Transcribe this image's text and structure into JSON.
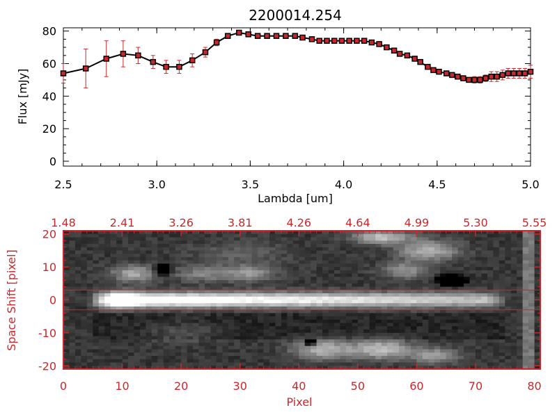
{
  "chart_data": [
    {
      "type": "line",
      "title": "2200014.254",
      "xlabel": "Lambda [um]",
      "ylabel": "Flux [mJy]",
      "xlim": [
        2.5,
        5.0
      ],
      "ylim": [
        -3,
        82
      ],
      "xticks": [
        "2.5",
        "3.0",
        "3.5",
        "4.0",
        "4.5",
        "5.0"
      ],
      "xtick_values": [
        2.5,
        3.0,
        3.5,
        4.0,
        4.5,
        5.0
      ],
      "yticks": [
        "0",
        "20",
        "40",
        "60",
        "80"
      ],
      "ytick_values": [
        0,
        20,
        40,
        60,
        80
      ],
      "grid": false,
      "line_color": "#000000",
      "marker_color": "#c8282d",
      "errorbar_color": "#c8282d",
      "x": [
        2.5,
        2.62,
        2.73,
        2.82,
        2.9,
        2.98,
        3.05,
        3.12,
        3.19,
        3.26,
        3.32,
        3.38,
        3.44,
        3.49,
        3.54,
        3.59,
        3.64,
        3.69,
        3.74,
        3.78,
        3.83,
        3.87,
        3.91,
        3.95,
        3.99,
        4.03,
        4.07,
        4.11,
        4.15,
        4.19,
        4.23,
        4.27,
        4.3,
        4.34,
        4.38,
        4.41,
        4.45,
        4.48,
        4.51,
        4.55,
        4.58,
        4.61,
        4.64,
        4.67,
        4.7,
        4.73,
        4.76,
        4.79,
        4.82,
        4.85,
        4.88,
        4.91,
        4.94,
        4.97,
        5.0
      ],
      "y": [
        54,
        57,
        63,
        66,
        65,
        61,
        58,
        58,
        62,
        67,
        73,
        77,
        79,
        78,
        77,
        77,
        77,
        77,
        77,
        76,
        75,
        74,
        74,
        74,
        74,
        74,
        74,
        74,
        73,
        72,
        70,
        68,
        66,
        65,
        63,
        61,
        58,
        56,
        55,
        54,
        53,
        52,
        51,
        50,
        50,
        50,
        51,
        52,
        52,
        53,
        54,
        54,
        54,
        54,
        55
      ],
      "yerr": [
        6,
        12,
        11,
        8,
        5,
        4,
        4,
        4,
        4,
        3,
        2,
        1,
        1,
        1,
        1,
        1,
        1,
        1,
        1,
        1,
        1,
        1,
        1,
        1,
        1,
        1,
        1,
        1,
        1,
        1,
        1,
        1,
        1,
        1,
        1,
        1,
        1,
        1,
        1,
        1,
        1,
        1,
        1,
        1,
        2,
        2,
        2,
        3,
        3,
        3,
        3,
        3,
        3,
        3,
        4
      ]
    },
    {
      "type": "heatmap",
      "xlabel": "Pixel",
      "ylabel": "Space Shift [pixel]",
      "xlim": [
        0,
        81
      ],
      "ylim": [
        -21,
        21
      ],
      "xticks": [
        "0",
        "10",
        "20",
        "30",
        "40",
        "50",
        "60",
        "70",
        "80"
      ],
      "xtick_values": [
        0,
        10,
        20,
        30,
        40,
        50,
        60,
        70,
        80
      ],
      "yticks": [
        "-20",
        "-10",
        "0",
        "10",
        "20"
      ],
      "ytick_values": [
        -20,
        -10,
        0,
        10,
        20
      ],
      "top_axis_ticks": [
        "1.48",
        "2.41",
        "3.26",
        "3.81",
        "4.26",
        "4.64",
        "4.99",
        "5.30",
        "5.55"
      ],
      "top_axis_values": [
        0,
        10,
        20,
        30,
        40,
        50,
        60,
        70,
        80
      ],
      "hlines": [
        3,
        -3
      ],
      "axis_color": "#c8282d",
      "colormap": "grayscale",
      "components": [
        {
          "kind": "trace",
          "center": 0,
          "width": 2.2,
          "x_start": 6,
          "x_end": 74,
          "peak": 1.0
        },
        {
          "kind": "blob",
          "x": 10,
          "y": 0,
          "sx": 3,
          "sy": 2.5,
          "amp": 0.35
        },
        {
          "kind": "blob",
          "x": 12,
          "y": 8,
          "sx": 4,
          "sy": 2.5,
          "amp": 0.45
        },
        {
          "kind": "blob",
          "x": 24,
          "y": 8,
          "sx": 5,
          "sy": 2.5,
          "amp": 0.3
        },
        {
          "kind": "blob",
          "x": 32,
          "y": 8,
          "sx": 4,
          "sy": 2.5,
          "amp": 0.35
        },
        {
          "kind": "blob",
          "x": 54,
          "y": 19,
          "sx": 5,
          "sy": 2.0,
          "amp": 0.55
        },
        {
          "kind": "blob",
          "x": 62,
          "y": 15,
          "sx": 5,
          "sy": 3.0,
          "amp": 0.5
        },
        {
          "kind": "blob",
          "x": 58,
          "y": 9,
          "sx": 4,
          "sy": 2.5,
          "amp": 0.35
        },
        {
          "kind": "blob",
          "x": 44,
          "y": -15,
          "sx": 5,
          "sy": 3.0,
          "amp": 0.5
        },
        {
          "kind": "blob",
          "x": 54,
          "y": -15,
          "sx": 5,
          "sy": 3.0,
          "amp": 0.55
        },
        {
          "kind": "blob",
          "x": 63,
          "y": -17,
          "sx": 4,
          "sy": 2.5,
          "amp": 0.4
        },
        {
          "kind": "blob",
          "x": 20,
          "y": -10,
          "sx": 6,
          "sy": 3.0,
          "amp": 0.15
        },
        {
          "kind": "blob",
          "x": 30,
          "y": 14,
          "sx": 8,
          "sy": 4.0,
          "amp": 0.15
        }
      ],
      "dark_spots": [
        {
          "x": 17,
          "y": 9,
          "sx": 1.2,
          "sy": 1.5
        },
        {
          "x": 42,
          "y": -13,
          "sx": 0.8,
          "sy": 0.8
        },
        {
          "x": 66,
          "y": 6,
          "sx": 2.0,
          "sy": 1.5
        }
      ]
    }
  ]
}
